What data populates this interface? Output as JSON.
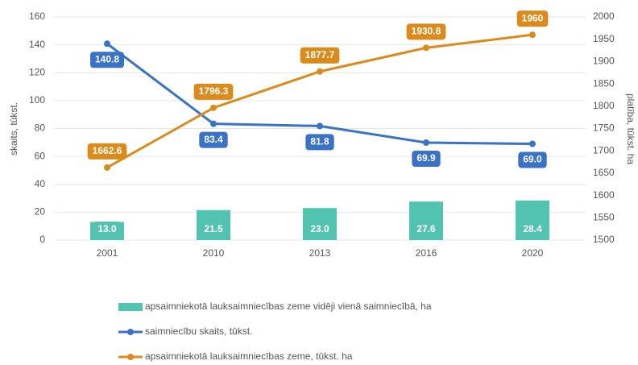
{
  "chart_data": {
    "type": "combo",
    "categories": [
      "2001",
      "2010",
      "2013",
      "2016",
      "2020"
    ],
    "y_label": "skaits, tūkst.",
    "y2_label": "platība, tūkst. ha",
    "ylim": [
      0,
      160
    ],
    "yticks": [
      0,
      20,
      40,
      60,
      80,
      100,
      120,
      140,
      160
    ],
    "y2lim": [
      1500,
      2000
    ],
    "y2ticks": [
      1500,
      1550,
      1600,
      1650,
      1700,
      1750,
      1800,
      1850,
      1900,
      1950,
      2000
    ],
    "grid": true,
    "legend": "bottom",
    "series": [
      {
        "name": "apsaimniekotā lauksaimniecības zeme vidēji vienā saimniecībā, ha",
        "type": "bar",
        "color": "#52c3b1",
        "values": [
          13.0,
          21.5,
          23.0,
          27.6,
          28.4
        ],
        "value_labels": [
          "13.0",
          "21.5",
          "23.0",
          "27.6",
          "28.4"
        ]
      },
      {
        "name": "saimniecību skaits, tūkst.",
        "type": "line",
        "color": "#3a72c6",
        "values": [
          140.8,
          83.4,
          81.8,
          69.9,
          69.0
        ],
        "value_labels": [
          "140.8",
          "83.4",
          "81.8",
          "69.9",
          "69.0"
        ]
      },
      {
        "name": "apsaimniekotā lauksaimniecības zeme, tūkst. ha",
        "type": "line",
        "axis": "y2",
        "color": "#da8b1c",
        "values": [
          1662.6,
          1796.3,
          1877.7,
          1930.8,
          1960
        ]
      }
    ]
  }
}
